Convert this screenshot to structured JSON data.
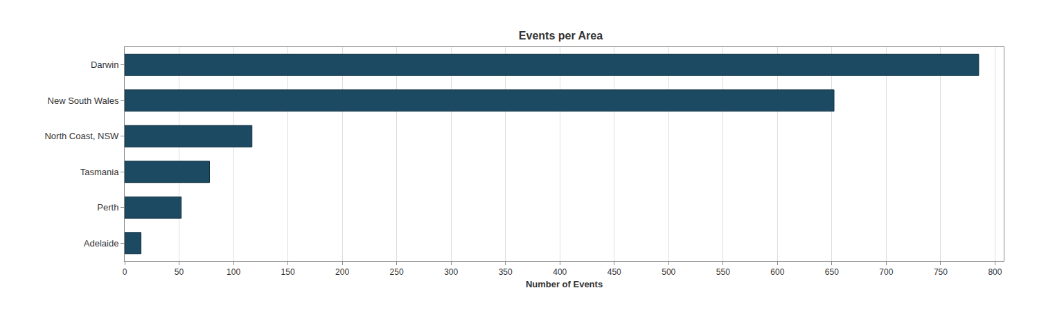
{
  "chart_data": {
    "type": "bar",
    "orientation": "horizontal",
    "title": "Events per Area",
    "x_label": "Number of Events",
    "categories": [
      "Darwin",
      "New South Wales",
      "North Coast, NSW",
      "Tasmania",
      "Perth",
      "Adelaide"
    ],
    "values": [
      785,
      652,
      117,
      78,
      52,
      15
    ],
    "color": "#1d4a63",
    "xlim": [
      0,
      808
    ],
    "xticks": [
      0,
      50,
      100,
      150,
      200,
      250,
      300,
      350,
      400,
      450,
      500,
      550,
      600,
      650,
      700,
      750,
      800
    ],
    "grid": true
  }
}
